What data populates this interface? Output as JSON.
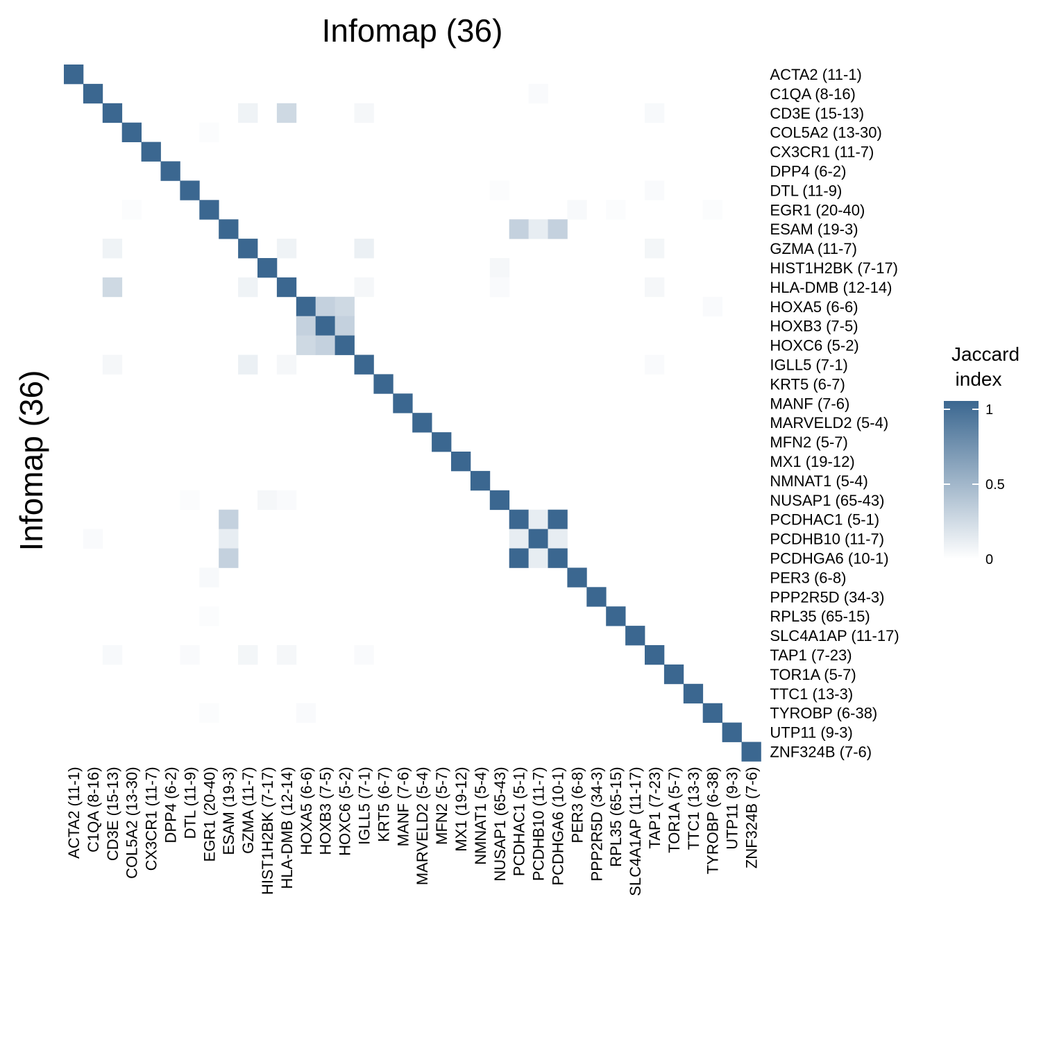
{
  "chart_data": {
    "type": "heatmap",
    "title": "Infomap (36)",
    "ylabel": "Infomap (36)",
    "xlabel": "",
    "labels": [
      "ACTA2 (11-1)",
      "C1QA (8-16)",
      "CD3E (15-13)",
      "COL5A2 (13-30)",
      "CX3CR1 (11-7)",
      "DPP4 (6-2)",
      "DTL (11-9)",
      "EGR1 (20-40)",
      "ESAM (19-3)",
      "GZMA (11-7)",
      "HIST1H2BK (7-17)",
      "HLA-DMB (12-14)",
      "HOXA5 (6-6)",
      "HOXB3 (7-5)",
      "HOXC6 (5-2)",
      "IGLL5 (7-1)",
      "KRT5 (6-7)",
      "MANF (7-6)",
      "MARVELD2 (5-4)",
      "MFN2 (5-7)",
      "MX1 (19-12)",
      "NMNAT1 (5-4)",
      "NUSAP1 (65-43)",
      "PCDHAC1 (5-1)",
      "PCDHB10 (11-7)",
      "PCDHGA6 (10-1)",
      "PER3 (6-8)",
      "PPP2R5D (34-3)",
      "RPL35 (65-15)",
      "SLC4A1AP (11-17)",
      "TAP1 (7-23)",
      "TOR1A (5-7)",
      "TTC1 (13-3)",
      "TYROBP (6-38)",
      "UTP11 (9-3)",
      "ZNF324B (7-6)"
    ],
    "diagonal_value": 1,
    "off_diagonal": [
      {
        "row": "C1QA (8-16)",
        "col": "PCDHB10 (11-7)",
        "value": 0.03
      },
      {
        "row": "CD3E (15-13)",
        "col": "GZMA (11-7)",
        "value": 0.08
      },
      {
        "row": "CD3E (15-13)",
        "col": "HLA-DMB (12-14)",
        "value": 0.25
      },
      {
        "row": "CD3E (15-13)",
        "col": "IGLL5 (7-1)",
        "value": 0.05
      },
      {
        "row": "CD3E (15-13)",
        "col": "TAP1 (7-23)",
        "value": 0.04
      },
      {
        "row": "COL5A2 (13-30)",
        "col": "EGR1 (20-40)",
        "value": 0.02
      },
      {
        "row": "DTL (11-9)",
        "col": "NUSAP1 (65-43)",
        "value": 0.02
      },
      {
        "row": "DTL (11-9)",
        "col": "TAP1 (7-23)",
        "value": 0.03
      },
      {
        "row": "EGR1 (20-40)",
        "col": "COL5A2 (13-30)",
        "value": 0.02
      },
      {
        "row": "EGR1 (20-40)",
        "col": "PER3 (6-8)",
        "value": 0.04
      },
      {
        "row": "EGR1 (20-40)",
        "col": "RPL35 (65-15)",
        "value": 0.02
      },
      {
        "row": "EGR1 (20-40)",
        "col": "TYROBP (6-38)",
        "value": 0.02
      },
      {
        "row": "ESAM (19-3)",
        "col": "PCDHAC1 (5-1)",
        "value": 0.3
      },
      {
        "row": "ESAM (19-3)",
        "col": "PCDHB10 (11-7)",
        "value": 0.12
      },
      {
        "row": "ESAM (19-3)",
        "col": "PCDHGA6 (10-1)",
        "value": 0.3
      },
      {
        "row": "GZMA (11-7)",
        "col": "CD3E (15-13)",
        "value": 0.08
      },
      {
        "row": "GZMA (11-7)",
        "col": "HLA-DMB (12-14)",
        "value": 0.08
      },
      {
        "row": "GZMA (11-7)",
        "col": "IGLL5 (7-1)",
        "value": 0.1
      },
      {
        "row": "GZMA (11-7)",
        "col": "TAP1 (7-23)",
        "value": 0.06
      },
      {
        "row": "HIST1H2BK (7-17)",
        "col": "NUSAP1 (65-43)",
        "value": 0.05
      },
      {
        "row": "HLA-DMB (12-14)",
        "col": "CD3E (15-13)",
        "value": 0.25
      },
      {
        "row": "HLA-DMB (12-14)",
        "col": "GZMA (11-7)",
        "value": 0.08
      },
      {
        "row": "HLA-DMB (12-14)",
        "col": "IGLL5 (7-1)",
        "value": 0.05
      },
      {
        "row": "HLA-DMB (12-14)",
        "col": "NUSAP1 (65-43)",
        "value": 0.03
      },
      {
        "row": "HLA-DMB (12-14)",
        "col": "TAP1 (7-23)",
        "value": 0.05
      },
      {
        "row": "HOXA5 (6-6)",
        "col": "HOXB3 (7-5)",
        "value": 0.3
      },
      {
        "row": "HOXA5 (6-6)",
        "col": "HOXC6 (5-2)",
        "value": 0.25
      },
      {
        "row": "HOXA5 (6-6)",
        "col": "TYROBP (6-38)",
        "value": 0.03
      },
      {
        "row": "HOXB3 (7-5)",
        "col": "HOXA5 (6-6)",
        "value": 0.3
      },
      {
        "row": "HOXB3 (7-5)",
        "col": "HOXC6 (5-2)",
        "value": 0.3
      },
      {
        "row": "HOXC6 (5-2)",
        "col": "HOXA5 (6-6)",
        "value": 0.25
      },
      {
        "row": "HOXC6 (5-2)",
        "col": "HOXB3 (7-5)",
        "value": 0.3
      },
      {
        "row": "IGLL5 (7-1)",
        "col": "CD3E (15-13)",
        "value": 0.05
      },
      {
        "row": "IGLL5 (7-1)",
        "col": "GZMA (11-7)",
        "value": 0.1
      },
      {
        "row": "IGLL5 (7-1)",
        "col": "HLA-DMB (12-14)",
        "value": 0.05
      },
      {
        "row": "IGLL5 (7-1)",
        "col": "TAP1 (7-23)",
        "value": 0.03
      },
      {
        "row": "NUSAP1 (65-43)",
        "col": "DTL (11-9)",
        "value": 0.02
      },
      {
        "row": "NUSAP1 (65-43)",
        "col": "HIST1H2BK (7-17)",
        "value": 0.05
      },
      {
        "row": "NUSAP1 (65-43)",
        "col": "HLA-DMB (12-14)",
        "value": 0.03
      },
      {
        "row": "PCDHAC1 (5-1)",
        "col": "ESAM (19-3)",
        "value": 0.3
      },
      {
        "row": "PCDHAC1 (5-1)",
        "col": "PCDHB10 (11-7)",
        "value": 0.12
      },
      {
        "row": "PCDHAC1 (5-1)",
        "col": "PCDHGA6 (10-1)",
        "value": 1
      },
      {
        "row": "PCDHB10 (11-7)",
        "col": "C1QA (8-16)",
        "value": 0.03
      },
      {
        "row": "PCDHB10 (11-7)",
        "col": "ESAM (19-3)",
        "value": 0.12
      },
      {
        "row": "PCDHB10 (11-7)",
        "col": "PCDHAC1 (5-1)",
        "value": 0.12
      },
      {
        "row": "PCDHB10 (11-7)",
        "col": "PCDHGA6 (10-1)",
        "value": 0.12
      },
      {
        "row": "PCDHGA6 (10-1)",
        "col": "ESAM (19-3)",
        "value": 0.3
      },
      {
        "row": "PCDHGA6 (10-1)",
        "col": "PCDHAC1 (5-1)",
        "value": 1
      },
      {
        "row": "PCDHGA6 (10-1)",
        "col": "PCDHB10 (11-7)",
        "value": 0.12
      },
      {
        "row": "PER3 (6-8)",
        "col": "EGR1 (20-40)",
        "value": 0.04
      },
      {
        "row": "RPL35 (65-15)",
        "col": "EGR1 (20-40)",
        "value": 0.02
      },
      {
        "row": "TAP1 (7-23)",
        "col": "CD3E (15-13)",
        "value": 0.04
      },
      {
        "row": "TAP1 (7-23)",
        "col": "DTL (11-9)",
        "value": 0.03
      },
      {
        "row": "TAP1 (7-23)",
        "col": "GZMA (11-7)",
        "value": 0.06
      },
      {
        "row": "TAP1 (7-23)",
        "col": "HLA-DMB (12-14)",
        "value": 0.05
      },
      {
        "row": "TAP1 (7-23)",
        "col": "IGLL5 (7-1)",
        "value": 0.03
      },
      {
        "row": "TYROBP (6-38)",
        "col": "EGR1 (20-40)",
        "value": 0.02
      },
      {
        "row": "TYROBP (6-38)",
        "col": "HOXA5 (6-6)",
        "value": 0.03
      }
    ],
    "legend": {
      "title_lines": [
        "Jaccard",
        "index"
      ],
      "ticks": [
        {
          "value": 0,
          "label": "0"
        },
        {
          "value": 0.5,
          "label": "0.5"
        },
        {
          "value": 1,
          "label": "1"
        }
      ],
      "range": [
        0,
        1
      ],
      "placement": "right"
    },
    "colors": {
      "low": "#ffffff",
      "high": "#3b6790"
    },
    "grid": false
  }
}
